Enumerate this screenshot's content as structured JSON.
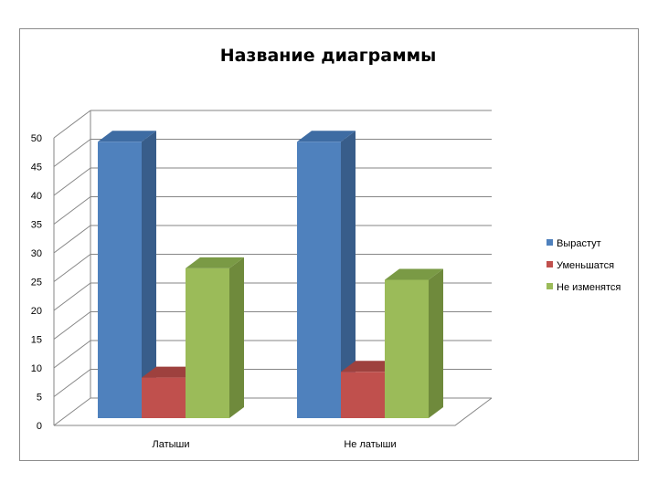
{
  "chart_data": {
    "type": "bar",
    "title": "Название диаграммы",
    "categories": [
      "Латыши",
      "Не латыши"
    ],
    "series": [
      {
        "name": "Вырастут",
        "values": [
          49,
          49
        ],
        "color": "#4f81bd",
        "side": "#385d8a",
        "top": "#3e6ca3"
      },
      {
        "name": "Уменьшатся",
        "values": [
          8,
          9
        ],
        "color": "#c0504d",
        "side": "#8c3836",
        "top": "#9e413e"
      },
      {
        "name": "Не изменятся",
        "values": [
          27,
          25
        ],
        "color": "#9bbb59",
        "side": "#6f8a3c",
        "top": "#7a9a45"
      }
    ],
    "yticks": [
      0,
      5,
      10,
      15,
      20,
      25,
      30,
      35,
      40,
      45,
      50
    ],
    "ylim": [
      0,
      50
    ],
    "grid": true,
    "legend_position": "right"
  }
}
